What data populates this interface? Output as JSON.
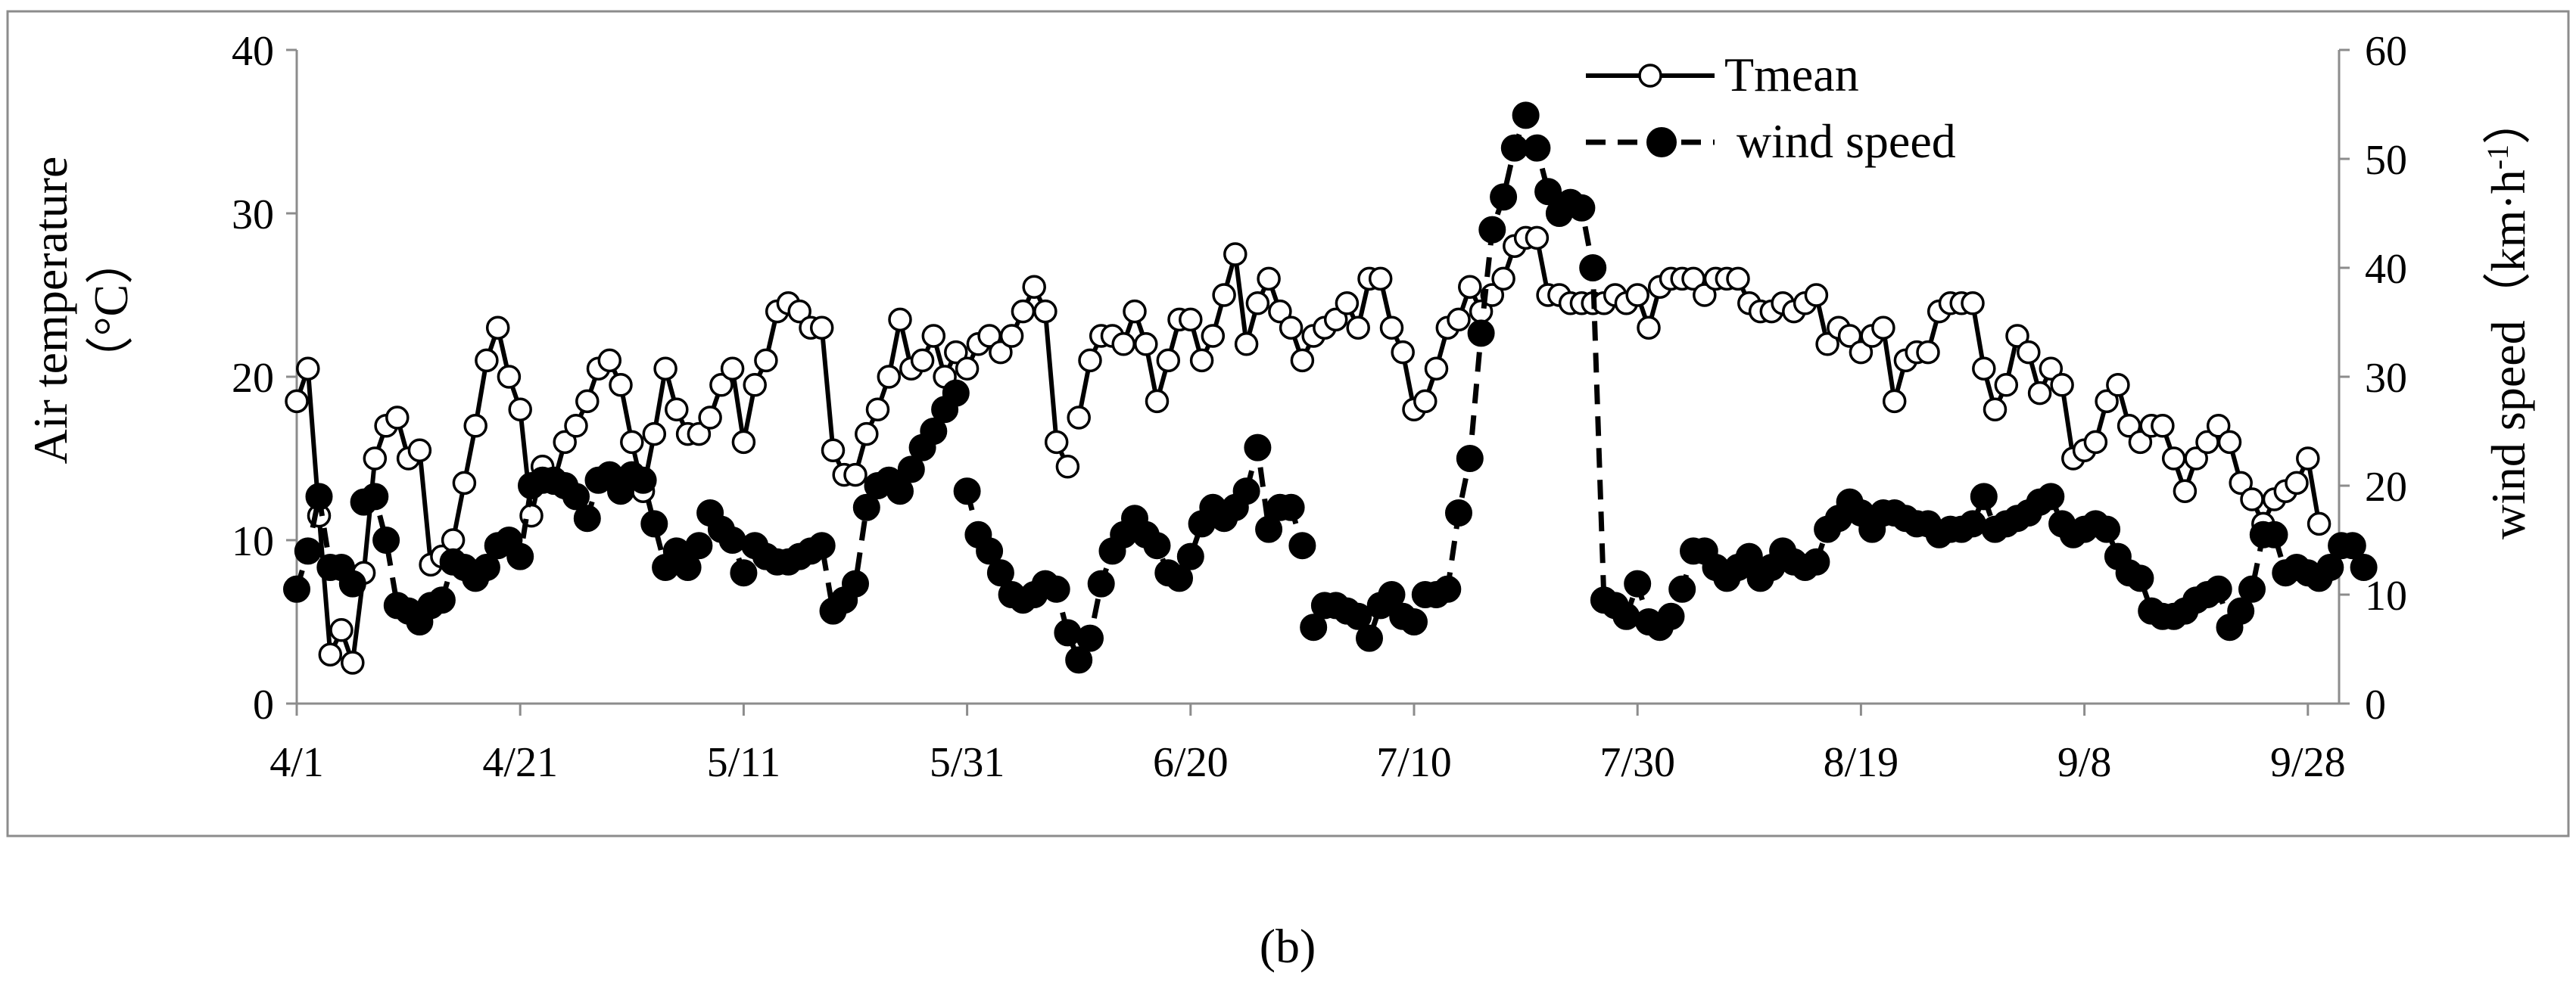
{
  "chart_data": {
    "type": "line",
    "caption": "(b)",
    "x_tick_labels": [
      "4/1",
      "4/21",
      "5/11",
      "5/31",
      "6/20",
      "7/10",
      "7/30",
      "8/19",
      "9/8",
      "9/28"
    ],
    "x_tick_offsets_days": [
      0,
      20,
      40,
      60,
      80,
      100,
      120,
      140,
      160,
      180
    ],
    "xlim_days": [
      0,
      182
    ],
    "left_axis": {
      "label": "Air temperature",
      "unit": "（°C）",
      "ylim": [
        0,
        40
      ],
      "ticks": [
        0,
        10,
        20,
        30,
        40
      ]
    },
    "right_axis": {
      "label": "wind speed（km·h",
      "unit_superscript": "-1",
      "unit_close": "）",
      "ylim": [
        0,
        60
      ],
      "ticks": [
        0,
        10,
        20,
        30,
        40,
        50,
        60
      ]
    },
    "legend": {
      "placement": "top-center",
      "entries": [
        {
          "label": "Tmean",
          "style": "solid-open-circle"
        },
        {
          "label": " wind speed",
          "style": "dashed-filled-circle"
        }
      ]
    },
    "series": [
      {
        "name": "Tmean",
        "axis": "left",
        "color": "#000000",
        "values": [
          18.5,
          20.5,
          11.5,
          3.0,
          4.5,
          2.5,
          8.0,
          15.0,
          17.0,
          17.5,
          15.0,
          15.5,
          8.5,
          9.0,
          10.0,
          13.5,
          17.0,
          21.0,
          23.0,
          20.0,
          18.0,
          11.5,
          14.5,
          13.5,
          16.0,
          17.0,
          18.5,
          20.5,
          21.0,
          19.5,
          16.0,
          13.0,
          16.5,
          20.5,
          18.0,
          16.5,
          16.5,
          17.5,
          19.5,
          20.5,
          16.0,
          19.5,
          21.0,
          24.0,
          24.5,
          24.0,
          23.0,
          23.0,
          15.5,
          14.0,
          14.0,
          16.5,
          18.0,
          20.0,
          23.5,
          20.5,
          21.0,
          22.5,
          20.0,
          21.5,
          20.5,
          22.0,
          22.5,
          21.5,
          22.5,
          24.0,
          25.5,
          24.0,
          16.0,
          14.5,
          17.5,
          21.0,
          22.5,
          22.5,
          22.0,
          24.0,
          22.0,
          18.5,
          21.0,
          23.5,
          23.5,
          21.0,
          22.5,
          25.0,
          27.5,
          22.0,
          24.5,
          26.0,
          24.0,
          23.0,
          21.0,
          22.5,
          23.0,
          23.5,
          24.5,
          23.0,
          26.0,
          26.0,
          23.0,
          21.5,
          18.0,
          18.5,
          20.5,
          23.0,
          23.5,
          25.5,
          24.0,
          25.0,
          26.0,
          28.0,
          28.5,
          28.5,
          25.0,
          25.0,
          24.5,
          24.5,
          24.5,
          24.5,
          25.0,
          24.5,
          25.0,
          23.0,
          25.5,
          26.0,
          26.0,
          26.0,
          25.0,
          26.0,
          26.0,
          26.0,
          24.5,
          24.0,
          24.0,
          24.5,
          24.0,
          24.5,
          25.0,
          22.0,
          23.0,
          22.5,
          21.5,
          22.5,
          23.0,
          18.5,
          21.0,
          21.5,
          21.5,
          24.0,
          24.5,
          24.5,
          24.5,
          20.5,
          18.0,
          19.5,
          22.5,
          21.5,
          19.0,
          20.5,
          19.5,
          15.0,
          15.5,
          16.0,
          18.5,
          19.5,
          17.0,
          16.0,
          17.0,
          17.0,
          15.0,
          13.0,
          15.0,
          16.0,
          17.0,
          16.0,
          13.5,
          12.5,
          11.0,
          12.5,
          13.0,
          13.5,
          15.0,
          11.0
        ]
      },
      {
        "name": " wind speed",
        "axis": "right",
        "color": "#000000",
        "values": [
          10.5,
          14.0,
          19.0,
          12.5,
          12.5,
          11.0,
          18.5,
          19.0,
          15.0,
          9.0,
          8.5,
          7.5,
          9.0,
          9.5,
          13.0,
          12.5,
          11.5,
          12.5,
          14.5,
          15.0,
          13.5,
          20.0,
          20.5,
          20.5,
          20.0,
          19.0,
          17.0,
          20.5,
          21.0,
          19.5,
          21.0,
          20.5,
          16.5,
          12.5,
          14.0,
          12.5,
          14.5,
          17.5,
          16.0,
          15.0,
          12.0,
          14.5,
          13.5,
          13.0,
          13.0,
          13.5,
          14.0,
          14.5,
          8.5,
          9.5,
          11.0,
          18.0,
          20.0,
          20.5,
          19.5,
          21.5,
          23.5,
          25.0,
          27.0,
          28.5,
          19.5,
          15.5,
          14.0,
          12.0,
          10.0,
          9.5,
          10.0,
          11.0,
          10.5,
          6.5,
          4.0,
          6.0,
          11.0,
          14.0,
          15.5,
          17.0,
          15.5,
          14.5,
          12.0,
          11.5,
          13.5,
          16.5,
          18.0,
          17.0,
          18.0,
          19.5,
          23.5,
          16.0,
          18.0,
          18.0,
          14.5,
          7.0,
          9.0,
          9.0,
          8.5,
          8.0,
          6.0,
          9.0,
          10.0,
          8.0,
          7.5,
          10.0,
          10.0,
          10.5,
          17.5,
          22.5,
          34.0,
          43.5,
          46.5,
          51.0,
          54.0,
          51.0,
          47.0,
          45.0,
          46.0,
          45.5,
          40.0,
          9.5,
          9.0,
          8.0,
          11.0,
          7.5,
          7.0,
          8.0,
          10.5,
          14.0,
          14.0,
          12.5,
          11.5,
          12.5,
          13.5,
          11.5,
          12.5,
          14.0,
          13.0,
          12.5,
          13.0,
          16.0,
          17.0,
          18.5,
          17.5,
          16.0,
          17.5,
          17.5,
          17.0,
          16.5,
          16.5,
          15.5,
          16.0,
          16.0,
          16.5,
          19.0,
          16.0,
          16.5,
          17.0,
          17.5,
          18.5,
          19.0,
          16.5,
          15.5,
          16.0,
          16.5,
          16.0,
          13.5,
          12.0,
          11.5,
          8.5,
          8.0,
          8.0,
          8.5,
          9.5,
          10.0,
          10.5,
          7.0,
          8.5,
          10.5,
          15.5,
          15.5,
          12.0,
          12.5,
          12.0,
          11.5,
          12.5,
          14.5,
          14.5,
          12.5
        ]
      }
    ],
    "gaps": [
      {
        "series": " wind speed",
        "between_days": [
          5,
          6
        ]
      },
      {
        "series": " wind speed",
        "between_days": [
          10,
          11
        ]
      },
      {
        "series": " wind speed",
        "between_days": [
          48,
          49
        ]
      },
      {
        "series": " wind speed",
        "between_days": [
          59,
          60
        ]
      },
      {
        "series": " wind speed",
        "between_days": [
          90,
          91
        ]
      },
      {
        "series": " wind speed",
        "between_days": [
          118,
          119
        ]
      },
      {
        "series": "Tmean",
        "between_days": [
          69,
          70
        ]
      }
    ]
  }
}
